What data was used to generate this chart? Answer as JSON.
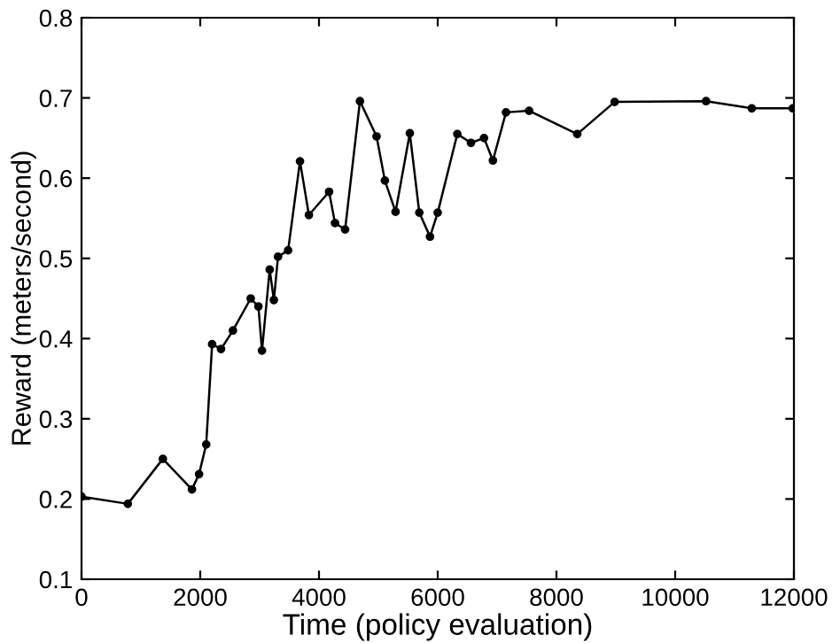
{
  "chart_data": {
    "type": "line",
    "xlabel": "Time (policy evaluation)",
    "ylabel": "Reward (meters/second)",
    "xlim": [
      0,
      12000
    ],
    "ylim": [
      0.1,
      0.8
    ],
    "xticks": [
      0,
      2000,
      4000,
      6000,
      8000,
      10000,
      12000
    ],
    "yticks": [
      0.1,
      0.2,
      0.3,
      0.4,
      0.5,
      0.6,
      0.7,
      0.8
    ],
    "grid": false,
    "legend": false,
    "marker": "circle",
    "line_style": "solid",
    "series": [
      {
        "color": "#000000",
        "x": [
          0,
          780,
          1370,
          1860,
          1980,
          2100,
          2200,
          2350,
          2550,
          2850,
          2980,
          3040,
          3170,
          3240,
          3310,
          3480,
          3680,
          3830,
          4170,
          4270,
          4440,
          4690,
          4970,
          5110,
          5290,
          5530,
          5690,
          5870,
          6000,
          6330,
          6560,
          6780,
          6930,
          7150,
          7540,
          8350,
          8980,
          10520,
          11290,
          11980
        ],
        "values": [
          0.203,
          0.194,
          0.25,
          0.212,
          0.231,
          0.268,
          0.393,
          0.387,
          0.41,
          0.45,
          0.44,
          0.385,
          0.486,
          0.448,
          0.502,
          0.51,
          0.621,
          0.554,
          0.583,
          0.544,
          0.536,
          0.696,
          0.652,
          0.597,
          0.558,
          0.656,
          0.557,
          0.527,
          0.557,
          0.655,
          0.644,
          0.65,
          0.622,
          0.682,
          0.684,
          0.655,
          0.695,
          0.696,
          0.687,
          0.687
        ]
      }
    ]
  }
}
